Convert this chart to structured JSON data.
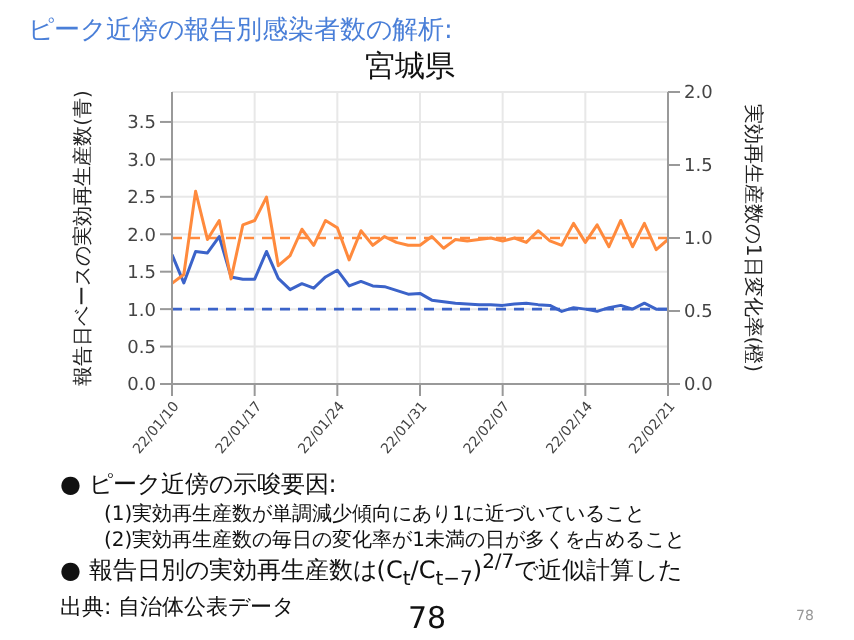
{
  "chart_data": {
    "type": "line",
    "subtitle": "ピーク近傍の報告別感染者数の解析:",
    "title": "宮城県",
    "ylabel": "報告日ベースの実効再生産数(青)",
    "y2label": "実効再生産数の1日変化率(橙)",
    "x": [
      "--01-10",
      "--01-11",
      "--01-12",
      "--01-13",
      "--01-14",
      "--01-15",
      "--01-16",
      "--01-17",
      "--01-18",
      "--01-19",
      "--01-20",
      "--01-21",
      "--01-22",
      "--01-23",
      "--01-24",
      "--01-25",
      "--01-26",
      "--01-27",
      "--01-28",
      "--01-29",
      "--01-30",
      "--01-31",
      "--02-01",
      "--02-02",
      "--02-03",
      "--02-04",
      "--02-05",
      "--02-06",
      "--02-07",
      "--02-08",
      "--02-09",
      "--02-10",
      "--02-11",
      "--02-12",
      "--02-13",
      "--02-14",
      "--02-15",
      "--02-16",
      "--02-17",
      "--02-18",
      "--02-19",
      "--02-20",
      "--02-21"
    ],
    "series": [
      {
        "color": "#3b63c9",
        "axis": "y",
        "values": [
          1.73,
          1.35,
          1.77,
          1.75,
          1.97,
          1.43,
          1.4,
          1.4,
          1.77,
          1.41,
          1.26,
          1.34,
          1.28,
          1.43,
          1.52,
          1.31,
          1.37,
          1.31,
          1.3,
          1.25,
          1.2,
          1.21,
          1.12,
          1.1,
          1.08,
          1.07,
          1.06,
          1.06,
          1.05,
          1.07,
          1.08,
          1.06,
          1.05,
          0.97,
          1.02,
          1.0,
          0.97,
          1.02,
          1.05,
          1.0,
          1.08,
          1.0,
          1.0
        ]
      },
      {
        "color": "#ff8a3d",
        "axis": "y2",
        "values": [
          0.69,
          0.75,
          1.32,
          0.99,
          1.12,
          0.72,
          1.09,
          1.12,
          1.28,
          0.81,
          0.88,
          1.06,
          0.95,
          1.12,
          1.07,
          0.85,
          1.05,
          0.95,
          1.01,
          0.97,
          0.95,
          0.95,
          1.01,
          0.93,
          0.99,
          0.98,
          0.99,
          1.0,
          0.98,
          1.0,
          0.97,
          1.05,
          0.98,
          0.95,
          1.1,
          0.97,
          1.09,
          0.94,
          1.12,
          0.94,
          1.1,
          0.92,
          0.99
        ]
      }
    ],
    "xlim": [
      "--01-10",
      "--02-21"
    ],
    "xticks": [
      {
        "value": "--01-10",
        "label": "22/01/10"
      },
      {
        "value": "--01-17",
        "label": "22/01/17"
      },
      {
        "value": "--01-24",
        "label": "22/01/24"
      },
      {
        "value": "--01-31",
        "label": "22/01/31"
      },
      {
        "value": "--02-07",
        "label": "22/02/07"
      },
      {
        "value": "--02-14",
        "label": "22/02/14"
      },
      {
        "value": "--02-21",
        "label": "22/02/21"
      }
    ],
    "ylim": [
      0,
      3.9
    ],
    "yticks": [
      {
        "value": 0,
        "label": "0.0"
      },
      {
        "value": 0.5,
        "label": "0.5"
      },
      {
        "value": 1,
        "label": "1.0"
      },
      {
        "value": 1.5,
        "label": "1.5"
      },
      {
        "value": 2,
        "label": "2.0"
      },
      {
        "value": 2.5,
        "label": "2.5"
      },
      {
        "value": 3,
        "label": "3.0"
      },
      {
        "value": 3.5,
        "label": "3.5"
      }
    ],
    "y2lim": [
      0,
      2
    ],
    "y2ticks": [
      {
        "value": 0,
        "label": "0.0"
      },
      {
        "value": 0.5,
        "label": "0.5"
      },
      {
        "value": 1,
        "label": "1.0"
      },
      {
        "value": 1.5,
        "label": "1.5"
      },
      {
        "value": 2,
        "label": "2.0"
      }
    ],
    "ref_lines": [
      {
        "axis": "y",
        "value": 1,
        "color": "#3b63c9",
        "line_style": "dashed"
      },
      {
        "axis": "y2",
        "value": 1,
        "color": "#ff8a3d",
        "line_style": "dashed"
      }
    ],
    "grid": true,
    "marker": "none",
    "line_style": "solid",
    "legend": false,
    "annotations": [
      "● ピーク近傍の示唆要因:",
      "(1)実効再生産数が単調減少傾向にあり1に近づいていること",
      "(2)実効再生産数の毎日の変化率が1未満の日が多くを占めること",
      "● 報告日別の実効再生産数は(C$_{t}$/C$_{t−7}$)$^{2/7}$で近似計算した",
      "出典: 自治体公表データ",
      "78",
      "78"
    ]
  }
}
